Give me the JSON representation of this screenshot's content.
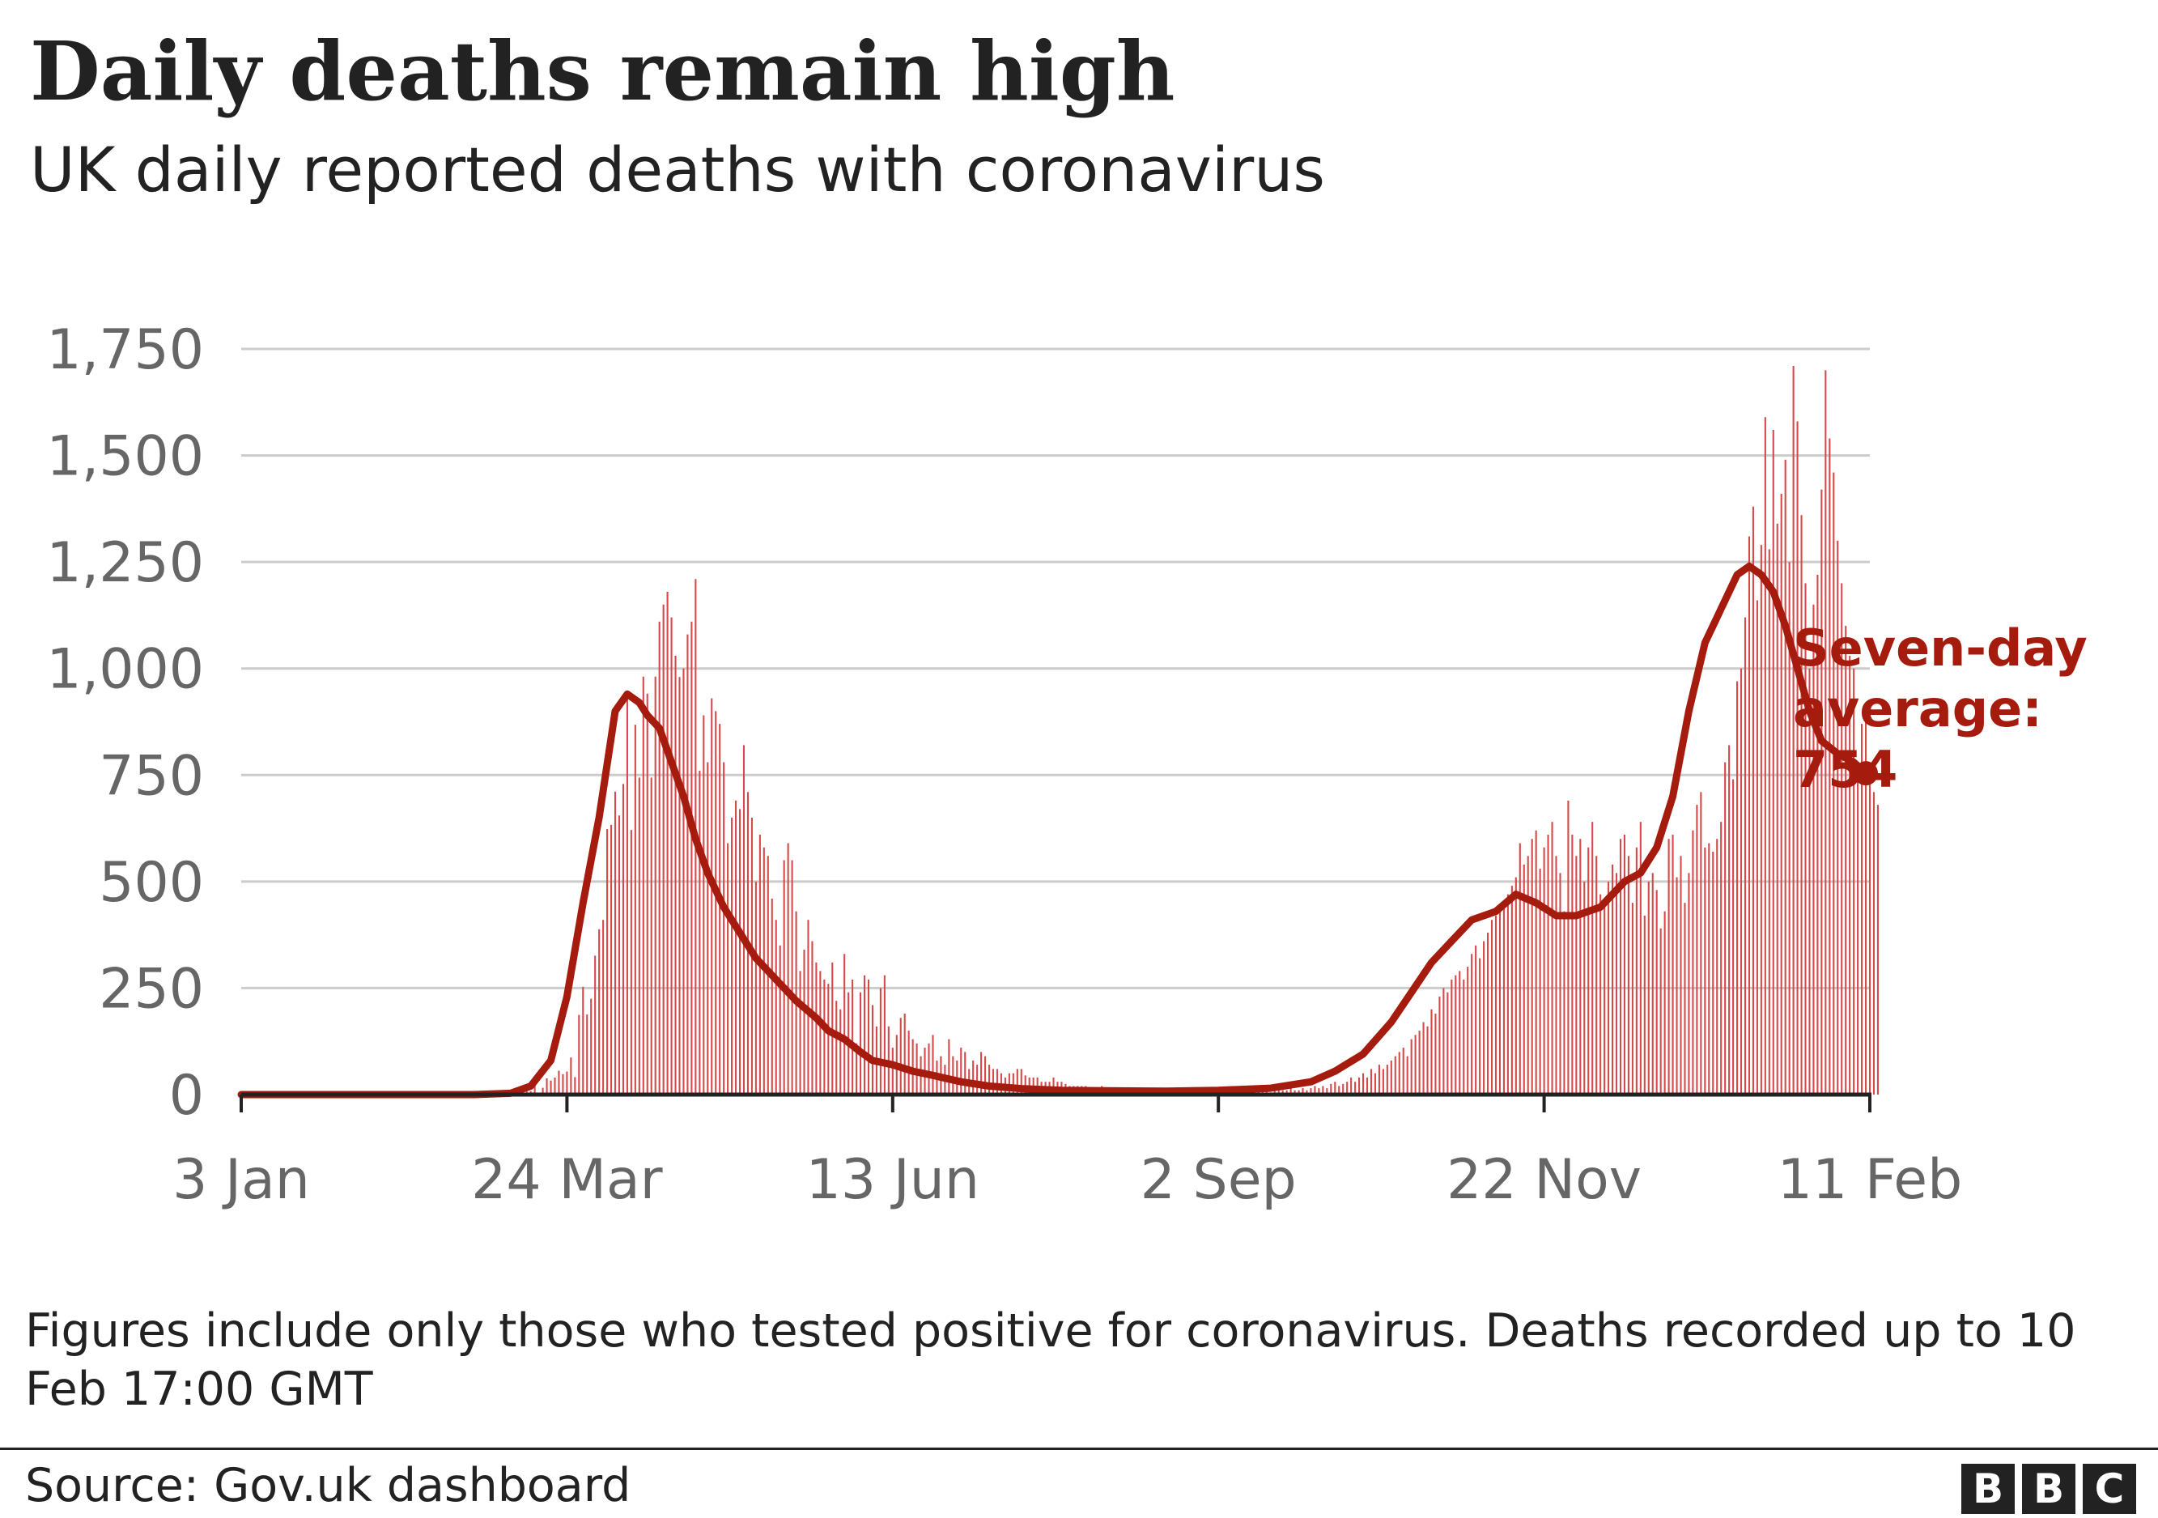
{
  "chart_data": {
    "type": "bar",
    "title": "Daily deaths remain high",
    "subtitle": "UK daily reported deaths with coronavirus",
    "x_start": "2020-01-03",
    "x_ticks": [
      "3 Jan",
      "24 Mar",
      "13 Jun",
      "2 Sep",
      "22 Nov",
      "11 Feb"
    ],
    "ylim": [
      0,
      1750
    ],
    "y_ticks": [
      0,
      250,
      500,
      750,
      1000,
      1250,
      1500,
      1750
    ],
    "y_tick_labels": [
      "0",
      "250",
      "500",
      "750",
      "1,000",
      "1,250",
      "1,500",
      "1,750"
    ],
    "grid": true,
    "colors": {
      "daily_bars": "#d5494a",
      "average_line": "#a51c0f",
      "grid": "#cccccc",
      "axis": "#222222",
      "ticks_text": "#666666"
    },
    "series": [
      {
        "type": "bar",
        "x_first": "2020-03-06",
        "x_last": "2021-02-10",
        "values": [
          1,
          1,
          1,
          0,
          1,
          1,
          5,
          0,
          11,
          8,
          20,
          0,
          16,
          38,
          33,
          40,
          56,
          48,
          54,
          87,
          41,
          187,
          253,
          188,
          225,
          326,
          388,
          410,
          623,
          633,
          711,
          655,
          729,
          945,
          621,
          868,
          744,
          981,
          941,
          744,
          981,
          1110,
          1150,
          1180,
          1120,
          1030,
          980,
          1000,
          1080,
          1110,
          1210,
          760,
          890,
          780,
          930,
          900,
          870,
          780,
          590,
          650,
          690,
          670,
          820,
          710,
          650,
          500,
          610,
          580,
          560,
          460,
          410,
          350,
          550,
          590,
          550,
          430,
          290,
          340,
          410,
          360,
          310,
          290,
          270,
          260,
          310,
          220,
          200,
          330,
          240,
          270,
          120,
          240,
          280,
          270,
          210,
          160,
          250,
          280,
          160,
          110,
          140,
          180,
          190,
          150,
          130,
          120,
          90,
          110,
          120,
          140,
          80,
          90,
          70,
          130,
          90,
          80,
          110,
          100,
          60,
          80,
          70,
          100,
          90,
          70,
          60,
          60,
          50,
          40,
          50,
          50,
          60,
          60,
          45,
          40,
          40,
          40,
          30,
          30,
          30,
          40,
          30,
          30,
          25,
          20,
          20,
          20,
          20,
          20,
          15,
          15,
          15,
          20,
          10,
          15,
          15,
          10,
          10,
          10,
          10,
          10,
          15,
          10,
          10,
          10,
          5,
          5,
          10,
          10,
          10,
          5,
          5,
          5,
          5,
          10,
          5,
          5,
          5,
          5,
          10,
          10,
          5,
          5,
          5,
          5,
          5,
          5,
          5,
          10,
          5,
          5,
          10,
          10,
          10,
          5,
          10,
          10,
          10,
          10,
          15,
          10,
          10,
          15,
          10,
          15,
          20,
          15,
          20,
          15,
          25,
          30,
          20,
          25,
          30,
          40,
          30,
          40,
          50,
          40,
          60,
          50,
          70,
          60,
          70,
          80,
          90,
          100,
          110,
          90,
          130,
          140,
          150,
          170,
          160,
          200,
          190,
          230,
          250,
          240,
          270,
          280,
          290,
          270,
          300,
          330,
          350,
          320,
          360,
          380,
          410,
          420,
          430,
          450,
          470,
          490,
          510,
          590,
          540,
          560,
          600,
          620,
          530,
          580,
          610,
          640,
          560,
          520,
          430,
          690,
          610,
          560,
          600,
          500,
          580,
          640,
          560,
          470,
          460,
          500,
          540,
          520,
          600,
          610,
          560,
          450,
          580,
          640,
          420,
          500,
          520,
          480,
          390,
          430,
          600,
          610,
          510,
          560,
          450,
          520,
          620,
          680,
          710,
          580,
          590,
          570,
          600,
          640,
          780,
          820,
          740,
          970,
          1000,
          1120,
          1310,
          1380,
          1160,
          1290,
          1590,
          1280,
          1560,
          1340,
          1410,
          1490,
          1250,
          1710,
          1580,
          1360,
          1200,
          1000,
          1150,
          1220,
          1420,
          1700,
          1540,
          1460,
          1300,
          1200,
          1100,
          1030,
          1000,
          740,
          870,
          920,
          780,
          710,
          680
        ]
      },
      {
        "type": "line",
        "name": "Seven-day average",
        "x_first": "2020-01-03",
        "x_last": "2021-02-10",
        "x": [
          "2020-01-03",
          "2020-03-01",
          "2020-03-10",
          "2020-03-15",
          "2020-03-20",
          "2020-03-24",
          "2020-03-28",
          "2020-04-01",
          "2020-04-05",
          "2020-04-08",
          "2020-04-11",
          "2020-04-13",
          "2020-04-16",
          "2020-04-19",
          "2020-04-22",
          "2020-04-25",
          "2020-04-28",
          "2020-05-02",
          "2020-05-06",
          "2020-05-10",
          "2020-05-15",
          "2020-05-20",
          "2020-05-25",
          "2020-05-28",
          "2020-06-01",
          "2020-06-05",
          "2020-06-08",
          "2020-06-13",
          "2020-06-18",
          "2020-06-23",
          "2020-06-30",
          "2020-07-07",
          "2020-07-15",
          "2020-07-25",
          "2020-08-05",
          "2020-08-20",
          "2020-09-02",
          "2020-09-15",
          "2020-09-25",
          "2020-10-01",
          "2020-10-08",
          "2020-10-15",
          "2020-10-20",
          "2020-10-25",
          "2020-10-30",
          "2020-11-04",
          "2020-11-10",
          "2020-11-15",
          "2020-11-20",
          "2020-11-25",
          "2020-11-30",
          "2020-12-06",
          "2020-12-12",
          "2020-12-16",
          "2020-12-20",
          "2020-12-24",
          "2020-12-28",
          "2021-01-01",
          "2021-01-05",
          "2021-01-09",
          "2021-01-12",
          "2021-01-15",
          "2021-01-18",
          "2021-01-21",
          "2021-01-24",
          "2021-01-27",
          "2021-01-30",
          "2021-02-03",
          "2021-02-07",
          "2021-02-10"
        ],
        "values": [
          0,
          0,
          3,
          20,
          80,
          230,
          450,
          650,
          900,
          940,
          920,
          890,
          860,
          780,
          700,
          600,
          520,
          440,
          380,
          320,
          270,
          220,
          180,
          150,
          130,
          100,
          80,
          70,
          55,
          45,
          30,
          20,
          14,
          10,
          9,
          8,
          10,
          15,
          30,
          55,
          95,
          170,
          240,
          310,
          360,
          410,
          430,
          470,
          450,
          420,
          420,
          440,
          500,
          520,
          580,
          700,
          900,
          1060,
          1140,
          1220,
          1240,
          1220,
          1180,
          1100,
          1000,
          900,
          830,
          800,
          780,
          754
        ]
      }
    ],
    "annotation": {
      "line1": "Seven-day",
      "line2": "average:",
      "line3": "754"
    }
  },
  "footnote": "Figures include only those who tested positive for coronavirus. Deaths recorded up to 10 Feb 17:00 GMT",
  "source": "Source: Gov.uk dashboard",
  "logo": [
    "B",
    "B",
    "C"
  ]
}
